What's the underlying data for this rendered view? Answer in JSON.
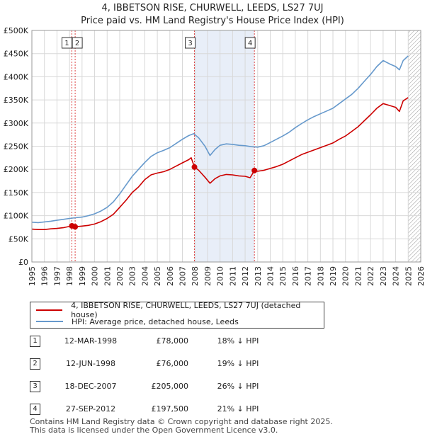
{
  "chart_data": {
    "type": "line",
    "title": "4, IBBETSON RISE, CHURWELL, LEEDS, LS27 7UJ",
    "subtitle": "Price paid vs. HM Land Registry's House Price Index (HPI)",
    "xlabel": "",
    "ylabel": "",
    "xlim": [
      1995,
      2026
    ],
    "ylim": [
      0,
      500000
    ],
    "grid": true,
    "x_ticks": [
      "1995",
      "1996",
      "1997",
      "1998",
      "1999",
      "2000",
      "2001",
      "2002",
      "2003",
      "2004",
      "2005",
      "2006",
      "2007",
      "2008",
      "2009",
      "2010",
      "2011",
      "2012",
      "2013",
      "2014",
      "2015",
      "2016",
      "2017",
      "2018",
      "2019",
      "2020",
      "2021",
      "2022",
      "2023",
      "2024",
      "2025",
      "2026"
    ],
    "y_ticks": [
      {
        "value": 0,
        "label": "£0"
      },
      {
        "value": 50000,
        "label": "£50K"
      },
      {
        "value": 100000,
        "label": "£100K"
      },
      {
        "value": 150000,
        "label": "£150K"
      },
      {
        "value": 200000,
        "label": "£200K"
      },
      {
        "value": 250000,
        "label": "£250K"
      },
      {
        "value": 300000,
        "label": "£300K"
      },
      {
        "value": 350000,
        "label": "£350K"
      },
      {
        "value": 400000,
        "label": "£400K"
      },
      {
        "value": 450000,
        "label": "£450K"
      },
      {
        "value": 500000,
        "label": "£500K"
      }
    ],
    "series": [
      {
        "name": "4, IBBETSON RISE, CHURWELL, LEEDS, LS27 7UJ (detached house)",
        "color": "#cc0000",
        "points": [
          [
            1995.0,
            71000
          ],
          [
            1995.5,
            70000
          ],
          [
            1996.0,
            70000
          ],
          [
            1996.5,
            71500
          ],
          [
            1997.0,
            72500
          ],
          [
            1997.5,
            74000
          ],
          [
            1998.19,
            78000
          ],
          [
            1998.45,
            76000
          ],
          [
            1999.0,
            77500
          ],
          [
            1999.5,
            79000
          ],
          [
            2000.0,
            82000
          ],
          [
            2000.5,
            87000
          ],
          [
            2001.0,
            94000
          ],
          [
            2001.5,
            103000
          ],
          [
            2002.0,
            118000
          ],
          [
            2002.5,
            133000
          ],
          [
            2003.0,
            150000
          ],
          [
            2003.5,
            162000
          ],
          [
            2004.0,
            178000
          ],
          [
            2004.5,
            188000
          ],
          [
            2005.0,
            192000
          ],
          [
            2005.5,
            195000
          ],
          [
            2006.0,
            200000
          ],
          [
            2006.5,
            207000
          ],
          [
            2007.0,
            214000
          ],
          [
            2007.5,
            221000
          ],
          [
            2007.7,
            225000
          ],
          [
            2007.96,
            205000
          ],
          [
            2008.3,
            198000
          ],
          [
            2008.8,
            183000
          ],
          [
            2009.2,
            170000
          ],
          [
            2009.6,
            180000
          ],
          [
            2010.0,
            186000
          ],
          [
            2010.5,
            189000
          ],
          [
            2011.0,
            188000
          ],
          [
            2011.5,
            186000
          ],
          [
            2012.0,
            185000
          ],
          [
            2012.4,
            182000
          ],
          [
            2012.74,
            197500
          ],
          [
            2013.0,
            196000
          ],
          [
            2013.5,
            198000
          ],
          [
            2014.0,
            202000
          ],
          [
            2014.5,
            206000
          ],
          [
            2015.0,
            211000
          ],
          [
            2015.5,
            218000
          ],
          [
            2016.0,
            225000
          ],
          [
            2016.5,
            232000
          ],
          [
            2017.0,
            237000
          ],
          [
            2017.5,
            242000
          ],
          [
            2018.0,
            247000
          ],
          [
            2018.5,
            252000
          ],
          [
            2019.0,
            257000
          ],
          [
            2019.5,
            265000
          ],
          [
            2020.0,
            272000
          ],
          [
            2020.5,
            282000
          ],
          [
            2021.0,
            292000
          ],
          [
            2021.5,
            305000
          ],
          [
            2022.0,
            318000
          ],
          [
            2022.5,
            332000
          ],
          [
            2023.0,
            342000
          ],
          [
            2023.5,
            338000
          ],
          [
            2024.0,
            334000
          ],
          [
            2024.3,
            325000
          ],
          [
            2024.6,
            348000
          ],
          [
            2025.0,
            355000
          ]
        ]
      },
      {
        "name": "HPI: Average price, detached house, Leeds",
        "color": "#6699cc",
        "points": [
          [
            1995.0,
            86000
          ],
          [
            1995.5,
            85000
          ],
          [
            1996.0,
            86500
          ],
          [
            1996.5,
            88000
          ],
          [
            1997.0,
            90000
          ],
          [
            1997.5,
            92000
          ],
          [
            1998.0,
            94000
          ],
          [
            1998.5,
            95500
          ],
          [
            1999.0,
            97000
          ],
          [
            1999.5,
            100000
          ],
          [
            2000.0,
            104000
          ],
          [
            2000.5,
            110000
          ],
          [
            2001.0,
            118000
          ],
          [
            2001.5,
            130000
          ],
          [
            2002.0,
            147000
          ],
          [
            2002.5,
            166000
          ],
          [
            2003.0,
            185000
          ],
          [
            2003.5,
            200000
          ],
          [
            2004.0,
            215000
          ],
          [
            2004.5,
            228000
          ],
          [
            2005.0,
            236000
          ],
          [
            2005.5,
            241000
          ],
          [
            2006.0,
            247000
          ],
          [
            2006.5,
            256000
          ],
          [
            2007.0,
            265000
          ],
          [
            2007.5,
            273000
          ],
          [
            2007.9,
            277000
          ],
          [
            2008.3,
            268000
          ],
          [
            2008.8,
            250000
          ],
          [
            2009.2,
            230000
          ],
          [
            2009.6,
            243000
          ],
          [
            2010.0,
            252000
          ],
          [
            2010.5,
            255000
          ],
          [
            2011.0,
            254000
          ],
          [
            2011.5,
            252000
          ],
          [
            2012.0,
            251000
          ],
          [
            2012.5,
            249000
          ],
          [
            2013.0,
            248000
          ],
          [
            2013.5,
            251000
          ],
          [
            2014.0,
            258000
          ],
          [
            2014.5,
            265000
          ],
          [
            2015.0,
            272000
          ],
          [
            2015.5,
            280000
          ],
          [
            2016.0,
            290000
          ],
          [
            2016.5,
            299000
          ],
          [
            2017.0,
            307000
          ],
          [
            2017.5,
            314000
          ],
          [
            2018.0,
            320000
          ],
          [
            2018.5,
            326000
          ],
          [
            2019.0,
            332000
          ],
          [
            2019.5,
            342000
          ],
          [
            2020.0,
            352000
          ],
          [
            2020.5,
            362000
          ],
          [
            2021.0,
            375000
          ],
          [
            2021.5,
            390000
          ],
          [
            2022.0,
            405000
          ],
          [
            2022.5,
            422000
          ],
          [
            2023.0,
            435000
          ],
          [
            2023.5,
            428000
          ],
          [
            2024.0,
            422000
          ],
          [
            2024.3,
            415000
          ],
          [
            2024.6,
            435000
          ],
          [
            2025.0,
            445000
          ]
        ]
      }
    ],
    "sales": [
      {
        "id": "1",
        "x": 1998.19,
        "value": 78000
      },
      {
        "id": "2",
        "x": 1998.45,
        "value": 76000
      },
      {
        "id": "3",
        "x": 2007.96,
        "value": 205000
      },
      {
        "id": "4",
        "x": 2012.74,
        "value": 197500
      }
    ],
    "shaded_period": [
      2007.96,
      2012.74
    ],
    "future_hatch_from": 2025.0
  },
  "legend": {
    "property_label": "4, IBBETSON RISE, CHURWELL, LEEDS, LS27 7UJ (detached house)",
    "hpi_label": "HPI: Average price, detached house, Leeds",
    "property_color": "#cc0000",
    "hpi_color": "#6699cc"
  },
  "transactions": [
    {
      "id": "1",
      "date": "12-MAR-1998",
      "price": "£78,000",
      "hpi": "18% ↓ HPI"
    },
    {
      "id": "2",
      "date": "12-JUN-1998",
      "price": "£76,000",
      "hpi": "19% ↓ HPI"
    },
    {
      "id": "3",
      "date": "18-DEC-2007",
      "price": "£205,000",
      "hpi": "26% ↓ HPI"
    },
    {
      "id": "4",
      "date": "27-SEP-2012",
      "price": "£197,500",
      "hpi": "21% ↓ HPI"
    }
  ],
  "footer": {
    "line1": "Contains HM Land Registry data © Crown copyright and database right 2025.",
    "line2": "This data is licensed under the Open Government Licence v3.0."
  }
}
